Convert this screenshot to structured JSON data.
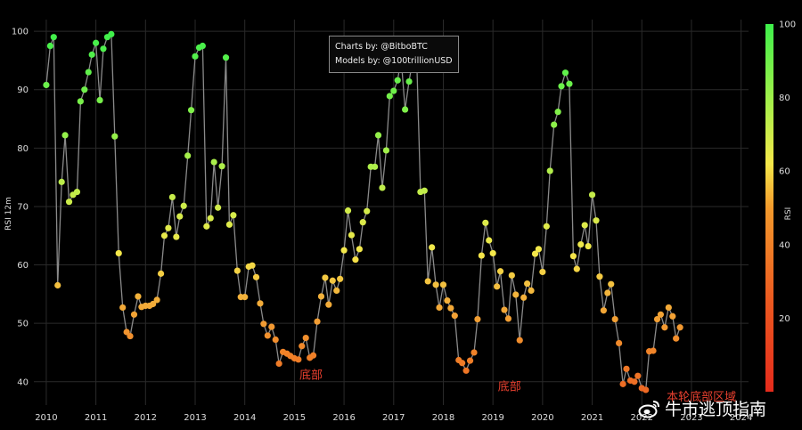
{
  "chart_data": {
    "type": "scatter",
    "ylabel": "RSI 12m",
    "ylim": [
      36,
      102
    ],
    "xlim": [
      2009.75,
      2024.15
    ],
    "x_ticks": [
      "2010",
      "2011",
      "2012",
      "2013",
      "2014",
      "2015",
      "2016",
      "2017",
      "2018",
      "2019",
      "2020",
      "2021",
      "2022",
      "2023",
      "2024"
    ],
    "y_ticks": [
      40,
      50,
      60,
      70,
      80,
      90,
      100
    ],
    "colorbar": {
      "label": "RSI",
      "ticks": [
        20,
        40,
        60,
        80,
        100
      ],
      "min": 0,
      "max": 100,
      "colors": [
        "#e52b1c",
        "#f39a2c",
        "#f5e84a",
        "#9ff04a",
        "#3ef04b"
      ]
    },
    "grid": true,
    "line_color": "#8a8a8a",
    "credits": [
      "Charts by: @BitboBTC",
      "Models by: @100trillionUSD"
    ],
    "annotations": [
      {
        "text": "底部",
        "x": 2015.1,
        "y": 40.5
      },
      {
        "text": "底部",
        "x": 2019.1,
        "y": 38.5
      },
      {
        "text": "本轮底部区域",
        "x": 2022.5,
        "y": 36.8
      }
    ],
    "points": [
      [
        2010.0,
        90.8
      ],
      [
        2010.08,
        97.5
      ],
      [
        2010.15,
        99.0
      ],
      [
        2010.23,
        56.5
      ],
      [
        2010.31,
        74.2
      ],
      [
        2010.38,
        82.2
      ],
      [
        2010.46,
        70.8
      ],
      [
        2010.54,
        72.0
      ],
      [
        2010.62,
        72.5
      ],
      [
        2010.69,
        88.0
      ],
      [
        2010.77,
        90.0
      ],
      [
        2010.85,
        93.0
      ],
      [
        2010.92,
        96.0
      ],
      [
        2011.0,
        98.0
      ],
      [
        2011.08,
        88.2
      ],
      [
        2011.15,
        97.0
      ],
      [
        2011.23,
        99.0
      ],
      [
        2011.31,
        99.5
      ],
      [
        2011.38,
        82.0
      ],
      [
        2011.46,
        62.0
      ],
      [
        2011.54,
        52.7
      ],
      [
        2011.62,
        48.5
      ],
      [
        2011.69,
        47.8
      ],
      [
        2011.77,
        51.5
      ],
      [
        2011.85,
        54.6
      ],
      [
        2011.92,
        52.8
      ],
      [
        2012.0,
        53.0
      ],
      [
        2012.08,
        53.0
      ],
      [
        2012.15,
        53.3
      ],
      [
        2012.23,
        54.0
      ],
      [
        2012.31,
        58.5
      ],
      [
        2012.38,
        65.0
      ],
      [
        2012.46,
        66.3
      ],
      [
        2012.54,
        71.6
      ],
      [
        2012.62,
        64.8
      ],
      [
        2012.69,
        68.3
      ],
      [
        2012.77,
        70.1
      ],
      [
        2012.85,
        78.7
      ],
      [
        2012.92,
        86.5
      ],
      [
        2013.0,
        95.7
      ],
      [
        2013.08,
        97.2
      ],
      [
        2013.15,
        97.5
      ],
      [
        2013.23,
        66.6
      ],
      [
        2013.31,
        68.0
      ],
      [
        2013.38,
        77.6
      ],
      [
        2013.46,
        69.8
      ],
      [
        2013.54,
        76.9
      ],
      [
        2013.62,
        95.5
      ],
      [
        2013.69,
        66.9
      ],
      [
        2013.77,
        68.5
      ],
      [
        2013.85,
        59.0
      ],
      [
        2013.92,
        54.5
      ],
      [
        2014.0,
        54.5
      ],
      [
        2014.08,
        59.7
      ],
      [
        2014.15,
        59.9
      ],
      [
        2014.23,
        57.9
      ],
      [
        2014.31,
        53.4
      ],
      [
        2014.38,
        49.9
      ],
      [
        2014.46,
        47.9
      ],
      [
        2014.54,
        49.4
      ],
      [
        2014.62,
        47.2
      ],
      [
        2014.69,
        43.1
      ],
      [
        2014.77,
        45.1
      ],
      [
        2014.85,
        44.8
      ],
      [
        2014.92,
        44.4
      ],
      [
        2015.0,
        44.0
      ],
      [
        2015.08,
        43.8
      ],
      [
        2015.15,
        46.1
      ],
      [
        2015.23,
        47.5
      ],
      [
        2015.31,
        44.1
      ],
      [
        2015.38,
        44.5
      ],
      [
        2015.46,
        50.3
      ],
      [
        2015.54,
        54.6
      ],
      [
        2015.62,
        57.8
      ],
      [
        2015.69,
        53.2
      ],
      [
        2015.77,
        57.3
      ],
      [
        2015.85,
        55.6
      ],
      [
        2015.92,
        57.6
      ],
      [
        2016.0,
        62.5
      ],
      [
        2016.08,
        69.3
      ],
      [
        2016.15,
        65.1
      ],
      [
        2016.23,
        60.9
      ],
      [
        2016.31,
        62.7
      ],
      [
        2016.38,
        67.3
      ],
      [
        2016.46,
        69.2
      ],
      [
        2016.54,
        76.8
      ],
      [
        2016.62,
        76.8
      ],
      [
        2016.69,
        82.2
      ],
      [
        2016.77,
        73.2
      ],
      [
        2016.85,
        79.6
      ],
      [
        2016.92,
        88.9
      ],
      [
        2017.0,
        89.8
      ],
      [
        2017.08,
        91.6
      ],
      [
        2017.15,
        95.4
      ],
      [
        2017.23,
        86.6
      ],
      [
        2017.31,
        91.4
      ],
      [
        2017.38,
        94.8
      ],
      [
        2017.46,
        96.5
      ],
      [
        2017.54,
        72.5
      ],
      [
        2017.62,
        72.7
      ],
      [
        2017.69,
        57.2
      ],
      [
        2017.77,
        63.0
      ],
      [
        2017.85,
        56.6
      ],
      [
        2017.92,
        52.7
      ],
      [
        2018.0,
        56.6
      ],
      [
        2018.08,
        53.9
      ],
      [
        2018.15,
        52.6
      ],
      [
        2018.23,
        51.3
      ],
      [
        2018.31,
        43.7
      ],
      [
        2018.38,
        43.2
      ],
      [
        2018.46,
        41.9
      ],
      [
        2018.54,
        43.6
      ],
      [
        2018.62,
        45.0
      ],
      [
        2018.69,
        50.7
      ],
      [
        2018.77,
        61.6
      ],
      [
        2018.85,
        67.2
      ],
      [
        2018.92,
        64.2
      ],
      [
        2019.0,
        62.0
      ],
      [
        2019.08,
        56.3
      ],
      [
        2019.15,
        58.9
      ],
      [
        2019.23,
        52.3
      ],
      [
        2019.31,
        50.8
      ],
      [
        2019.38,
        58.2
      ],
      [
        2019.46,
        54.9
      ],
      [
        2019.54,
        47.1
      ],
      [
        2019.62,
        54.4
      ],
      [
        2019.69,
        56.8
      ],
      [
        2019.77,
        55.6
      ],
      [
        2019.85,
        61.9
      ],
      [
        2019.92,
        62.7
      ],
      [
        2020.0,
        58.8
      ],
      [
        2020.08,
        66.6
      ],
      [
        2020.15,
        76.1
      ],
      [
        2020.23,
        84.0
      ],
      [
        2020.31,
        86.2
      ],
      [
        2020.38,
        90.6
      ],
      [
        2020.46,
        92.9
      ],
      [
        2020.54,
        91.0
      ],
      [
        2020.62,
        61.5
      ],
      [
        2020.69,
        59.3
      ],
      [
        2020.77,
        63.5
      ],
      [
        2020.85,
        66.8
      ],
      [
        2020.92,
        63.2
      ],
      [
        2021.0,
        72.0
      ],
      [
        2021.08,
        67.6
      ],
      [
        2021.15,
        58.0
      ],
      [
        2021.23,
        52.2
      ],
      [
        2021.31,
        55.2
      ],
      [
        2021.38,
        56.7
      ],
      [
        2021.46,
        50.7
      ],
      [
        2021.54,
        46.6
      ],
      [
        2021.62,
        39.6
      ],
      [
        2021.69,
        42.2
      ],
      [
        2021.77,
        40.2
      ],
      [
        2021.85,
        40.0
      ],
      [
        2021.92,
        41.0
      ],
      [
        2022.0,
        38.9
      ],
      [
        2022.08,
        38.6
      ],
      [
        2022.15,
        45.2
      ],
      [
        2022.23,
        45.3
      ],
      [
        2022.31,
        50.7
      ],
      [
        2022.38,
        51.5
      ],
      [
        2022.46,
        49.3
      ],
      [
        2022.54,
        52.7
      ],
      [
        2022.62,
        51.2
      ],
      [
        2022.69,
        47.4
      ],
      [
        2022.77,
        49.3
      ]
    ]
  },
  "watermark": {
    "text": "牛市逃顶指南",
    "icon": "weibo-logo"
  }
}
